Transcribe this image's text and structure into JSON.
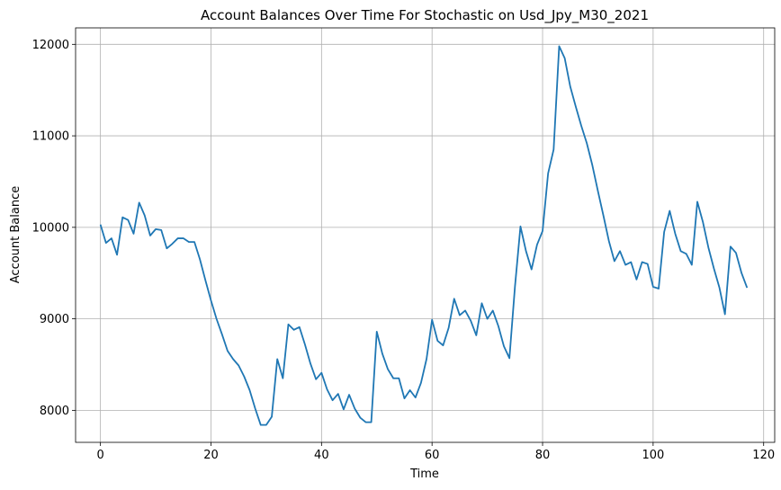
{
  "chart_data": {
    "type": "line",
    "title": "Account Balances Over Time For Stochastic on Usd_Jpy_M30_2021",
    "xlabel": "Time",
    "ylabel": "Account Balance",
    "xlim": [
      -4.5,
      122
    ],
    "ylim": [
      7650,
      12180
    ],
    "xticks": [
      0,
      20,
      40,
      60,
      80,
      100,
      120
    ],
    "yticks": [
      8000,
      9000,
      10000,
      11000,
      12000
    ],
    "grid": true,
    "line_color": "#1f77b4",
    "series": [
      {
        "values": [
          10030,
          9830,
          9880,
          9700,
          10110,
          10080,
          9930,
          10270,
          10130,
          9910,
          9980,
          9970,
          9770,
          9820,
          9880,
          9880,
          9840,
          9840,
          9650,
          9420,
          9200,
          9000,
          8830,
          8650,
          8560,
          8490,
          8370,
          8220,
          8020,
          7840,
          7840,
          7930,
          8560,
          8350,
          8940,
          8880,
          8910,
          8720,
          8510,
          8340,
          8410,
          8230,
          8110,
          8180,
          8010,
          8170,
          8020,
          7920,
          7870,
          7870,
          8860,
          8620,
          8450,
          8350,
          8350,
          8130,
          8220,
          8140,
          8300,
          8560,
          8990,
          8760,
          8710,
          8900,
          9220,
          9040,
          9090,
          8980,
          8820,
          9170,
          9000,
          9090,
          8920,
          8700,
          8570,
          9350,
          10010,
          9740,
          9540,
          9810,
          9960,
          10590,
          10850,
          11980,
          11850,
          11540,
          11320,
          11110,
          10920,
          10680,
          10400,
          10130,
          9850,
          9630,
          9740,
          9590,
          9620,
          9430,
          9620,
          9600,
          9350,
          9330,
          9950,
          10180,
          9930,
          9740,
          9710,
          9590,
          10280,
          10060,
          9780,
          9550,
          9340,
          9050,
          9790,
          9720,
          9500,
          9340
        ]
      }
    ]
  }
}
